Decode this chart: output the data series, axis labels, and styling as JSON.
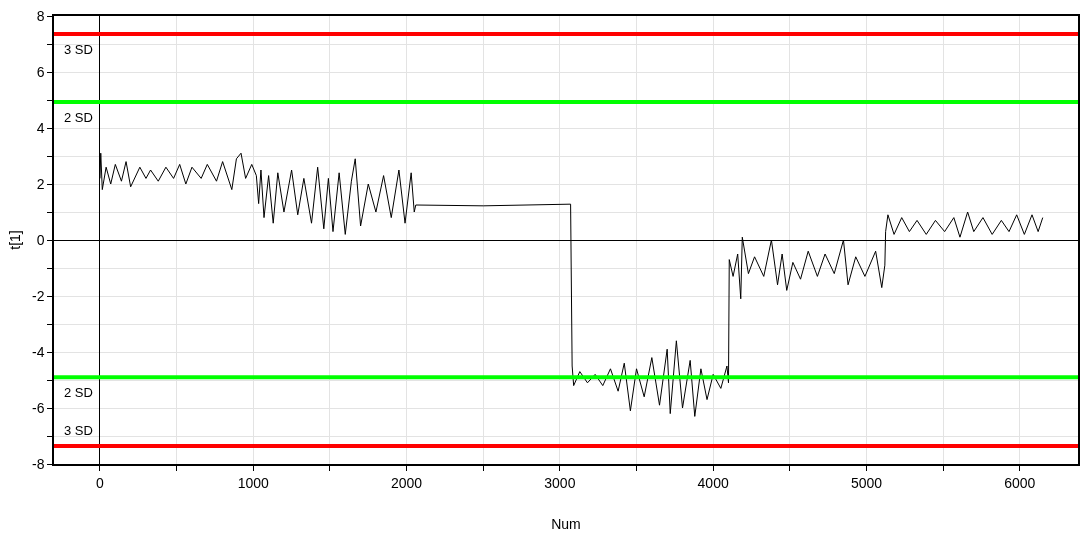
{
  "chart_data": {
    "type": "line",
    "xlabel": "Num",
    "ylabel": "t[1]",
    "xlim": [
      -300,
      6380
    ],
    "ylim": [
      -8,
      8
    ],
    "xticks": [
      0,
      {
        "value": 500,
        "label": null
      },
      1000,
      {
        "value": 1500,
        "label": null
      },
      2000,
      {
        "value": 2500,
        "label": null
      },
      3000,
      {
        "value": 3500,
        "label": null
      },
      4000,
      {
        "value": 4500,
        "label": null
      },
      5000,
      {
        "value": 5500,
        "label": null
      },
      6000
    ],
    "yticks": [
      -8,
      {
        "value": -7,
        "label": null
      },
      -6,
      {
        "value": -5,
        "label": null
      },
      -4,
      {
        "value": -3,
        "label": null
      },
      -2,
      {
        "value": -1,
        "label": null
      },
      0,
      {
        "value": 1,
        "label": null
      },
      2,
      {
        "value": 3,
        "label": null
      },
      4,
      {
        "value": 5,
        "label": null
      },
      6,
      {
        "value": 7,
        "label": null
      },
      8
    ],
    "grid": true,
    "marker": "none",
    "line_style": "solid",
    "series": [
      {
        "color": "#000000",
        "x": [
          0,
          5,
          15,
          40,
          70,
          100,
          140,
          170,
          200,
          260,
          300,
          330,
          380,
          430,
          480,
          520,
          560,
          600,
          660,
          700,
          760,
          800,
          860,
          890,
          920,
          950,
          990,
          1020,
          1035,
          1050,
          1070,
          1100,
          1130,
          1160,
          1200,
          1250,
          1290,
          1330,
          1380,
          1420,
          1460,
          1490,
          1520,
          1560,
          1600,
          1640,
          1665,
          1700,
          1750,
          1800,
          1850,
          1900,
          1950,
          1990,
          2030,
          2050,
          2060,
          2500,
          3070,
          3080,
          3090,
          3130,
          3180,
          3230,
          3280,
          3330,
          3380,
          3420,
          3460,
          3500,
          3550,
          3600,
          3650,
          3700,
          3720,
          3760,
          3800,
          3850,
          3880,
          3920,
          3960,
          4000,
          4050,
          4090,
          4100,
          4105,
          4130,
          4160,
          4180,
          4190,
          4230,
          4270,
          4330,
          4380,
          4420,
          4450,
          4480,
          4520,
          4570,
          4620,
          4680,
          4730,
          4790,
          4850,
          4880,
          4930,
          4990,
          5060,
          5100,
          5120,
          5125,
          5140,
          5180,
          5230,
          5280,
          5330,
          5390,
          5450,
          5510,
          5570,
          5610,
          5660,
          5700,
          5760,
          5820,
          5880,
          5930,
          5980,
          6030,
          6080,
          6120,
          6150
        ],
        "values": [
          2.2,
          3.1,
          1.8,
          2.6,
          2.0,
          2.7,
          2.1,
          2.8,
          1.9,
          2.6,
          2.2,
          2.5,
          2.1,
          2.6,
          2.2,
          2.7,
          2.0,
          2.6,
          2.2,
          2.7,
          2.1,
          2.8,
          1.8,
          2.9,
          3.1,
          2.2,
          2.7,
          2.3,
          1.3,
          2.5,
          0.8,
          2.3,
          0.6,
          2.4,
          1.0,
          2.5,
          0.9,
          2.2,
          0.6,
          2.6,
          0.4,
          2.2,
          0.3,
          2.4,
          0.2,
          2.1,
          2.9,
          0.5,
          2.0,
          1.0,
          2.3,
          0.8,
          2.5,
          0.6,
          2.4,
          1.0,
          1.25,
          1.22,
          1.28,
          -4.5,
          -5.2,
          -4.7,
          -5.1,
          -4.8,
          -5.2,
          -4.6,
          -5.4,
          -4.4,
          -6.1,
          -4.6,
          -5.6,
          -4.2,
          -5.9,
          -3.9,
          -6.2,
          -3.6,
          -6.0,
          -4.3,
          -6.3,
          -4.6,
          -5.7,
          -4.8,
          -5.3,
          -4.5,
          -5.1,
          -0.7,
          -1.3,
          -0.5,
          -2.1,
          0.1,
          -1.2,
          -0.6,
          -1.3,
          0.0,
          -1.6,
          -0.5,
          -1.8,
          -0.8,
          -1.4,
          -0.4,
          -1.3,
          -0.5,
          -1.2,
          0.0,
          -1.6,
          -0.6,
          -1.3,
          -0.4,
          -1.7,
          -0.9,
          0.3,
          0.9,
          0.2,
          0.8,
          0.3,
          0.7,
          0.2,
          0.7,
          0.3,
          0.8,
          0.1,
          1.0,
          0.3,
          0.8,
          0.2,
          0.7,
          0.3,
          0.9,
          0.2,
          0.9,
          0.3,
          0.8
        ]
      }
    ],
    "ref_lines": [
      {
        "axis": "y",
        "value": 7.36,
        "label": "3 SD",
        "color": "#ff0000",
        "line_style": "solid"
      },
      {
        "axis": "y",
        "value": 4.93,
        "label": "2 SD",
        "color": "#00ff00",
        "line_style": "solid"
      },
      {
        "axis": "y",
        "value": -4.9,
        "label": "2 SD",
        "color": "#00ff00",
        "line_style": "solid"
      },
      {
        "axis": "y",
        "value": -7.36,
        "label": "3 SD",
        "color": "#ff0000",
        "line_style": "solid"
      }
    ]
  }
}
